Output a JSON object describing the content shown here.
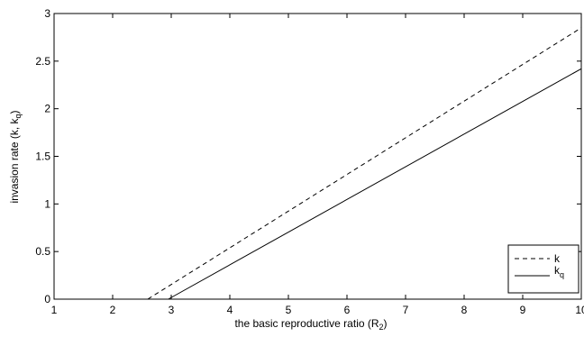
{
  "chart_data": {
    "type": "line",
    "xlabel": {
      "main": "the basic reproductive ratio (R",
      "sub": "2",
      "tail": ")"
    },
    "ylabel": {
      "main": "invasion rate (k, k",
      "sub": "q",
      "tail": ")"
    },
    "xlim": [
      1,
      10
    ],
    "ylim": [
      0,
      3
    ],
    "xticks": [
      "1",
      "2",
      "3",
      "4",
      "5",
      "6",
      "7",
      "8",
      "9",
      "10"
    ],
    "yticks": [
      "0",
      "0.5",
      "1",
      "1.5",
      "2",
      "2.5",
      "3"
    ],
    "grid": false,
    "legend_position": "bottom-right",
    "series": [
      {
        "name": "k",
        "name_sub": "",
        "style": "dashed",
        "x": [
          2.6,
          10
        ],
        "y": [
          0,
          2.85
        ]
      },
      {
        "name": "k",
        "name_sub": "q",
        "style": "solid",
        "x": [
          2.95,
          10
        ],
        "y": [
          0,
          2.42
        ]
      }
    ]
  }
}
